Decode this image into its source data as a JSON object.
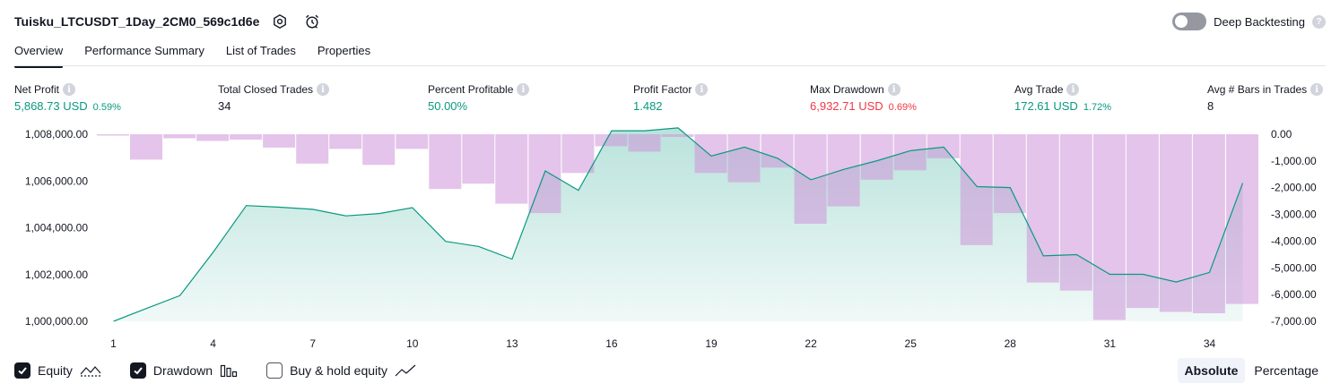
{
  "header": {
    "strategy_name": "Tuisku_LTCUSDT_1Day_2CM0_569c1d6e",
    "deep_backtesting_label": "Deep Backtesting",
    "deep_backtesting_enabled": false
  },
  "tabs": [
    {
      "label": "Overview",
      "active": true
    },
    {
      "label": "Performance Summary",
      "active": false
    },
    {
      "label": "List of Trades",
      "active": false
    },
    {
      "label": "Properties",
      "active": false
    }
  ],
  "metrics": {
    "net_profit": {
      "label": "Net Profit",
      "value": "5,868.73 USD",
      "pct": "0.59%",
      "color": "#089981"
    },
    "total_closed_trades": {
      "label": "Total Closed Trades",
      "value": "34"
    },
    "percent_profitable": {
      "label": "Percent Profitable",
      "value": "50.00%",
      "color": "#089981"
    },
    "profit_factor": {
      "label": "Profit Factor",
      "value": "1.482",
      "color": "#089981"
    },
    "max_drawdown": {
      "label": "Max Drawdown",
      "value": "6,932.71 USD",
      "pct": "0.69%",
      "color": "#f23645"
    },
    "avg_trade": {
      "label": "Avg Trade",
      "value": "172.61 USD",
      "pct": "1.72%",
      "color": "#089981"
    },
    "avg_bars": {
      "label": "Avg # Bars in Trades",
      "value": "8"
    }
  },
  "legend": {
    "equity_label": "Equity",
    "equity_checked": true,
    "drawdown_label": "Drawdown",
    "drawdown_checked": true,
    "buy_hold_label": "Buy & hold equity",
    "buy_hold_checked": false
  },
  "mode": {
    "absolute_label": "Absolute",
    "percentage_label": "Percentage",
    "selected": "Absolute"
  },
  "chart_data": {
    "type": "area",
    "x_ticks": [
      "1",
      "4",
      "7",
      "10",
      "13",
      "16",
      "19",
      "22",
      "25",
      "28",
      "31",
      "34"
    ],
    "left_axis": {
      "ticks": [
        "1,008,000.00",
        "1,006,000.00",
        "1,004,000.00",
        "1,002,000.00",
        "1,000,000.00"
      ],
      "range": [
        1000000,
        1008000
      ]
    },
    "right_axis": {
      "ticks": [
        "0.00",
        "-1,000.00",
        "-2,000.00",
        "-3,000.00",
        "-4,000.00",
        "-5,000.00",
        "-6,000.00",
        "-7,000.00"
      ],
      "range": [
        -7000,
        0
      ]
    },
    "series": [
      {
        "name": "Equity",
        "type": "area",
        "x": [
          1,
          2,
          3,
          4,
          5,
          6,
          7,
          8,
          9,
          10,
          11,
          12,
          13,
          14,
          15,
          16,
          17,
          18,
          19,
          20,
          21,
          22,
          23,
          24,
          25,
          26,
          27,
          28,
          29,
          30,
          31,
          32,
          33,
          34,
          35
        ],
        "values": [
          1000000,
          1000550,
          1001100,
          1002950,
          1004950,
          1004880,
          1004790,
          1004510,
          1004610,
          1004860,
          1003420,
          1003200,
          1002660,
          1006430,
          1005600,
          1008150,
          1008150,
          1008270,
          1007070,
          1007450,
          1006970,
          1006050,
          1006500,
          1006870,
          1007300,
          1007450,
          1005760,
          1005720,
          1002800,
          1002850,
          1002010,
          1002010,
          1001680,
          1002090,
          1005910
        ],
        "color": "#089981"
      },
      {
        "name": "Drawdown",
        "type": "bar",
        "x": [
          1,
          2,
          3,
          4,
          5,
          6,
          7,
          8,
          9,
          10,
          11,
          12,
          13,
          14,
          15,
          16,
          17,
          18,
          19,
          20,
          21,
          22,
          23,
          24,
          25,
          26,
          27,
          28,
          29,
          30,
          31,
          32,
          33,
          34,
          35
        ],
        "values": [
          -50,
          -950,
          -150,
          -250,
          -200,
          -500,
          -1100,
          -550,
          -1150,
          -550,
          -2050,
          -1850,
          -2600,
          -2950,
          -1450,
          -450,
          -650,
          -100,
          -1450,
          -1800,
          -1250,
          -3350,
          -2700,
          -1700,
          -1350,
          -900,
          -4150,
          -2950,
          -5550,
          -5850,
          -6950,
          -6500,
          -6650,
          -6700,
          -6350
        ],
        "color": "#ce93d8"
      }
    ],
    "grid": false,
    "legend_position": "bottom-left"
  }
}
